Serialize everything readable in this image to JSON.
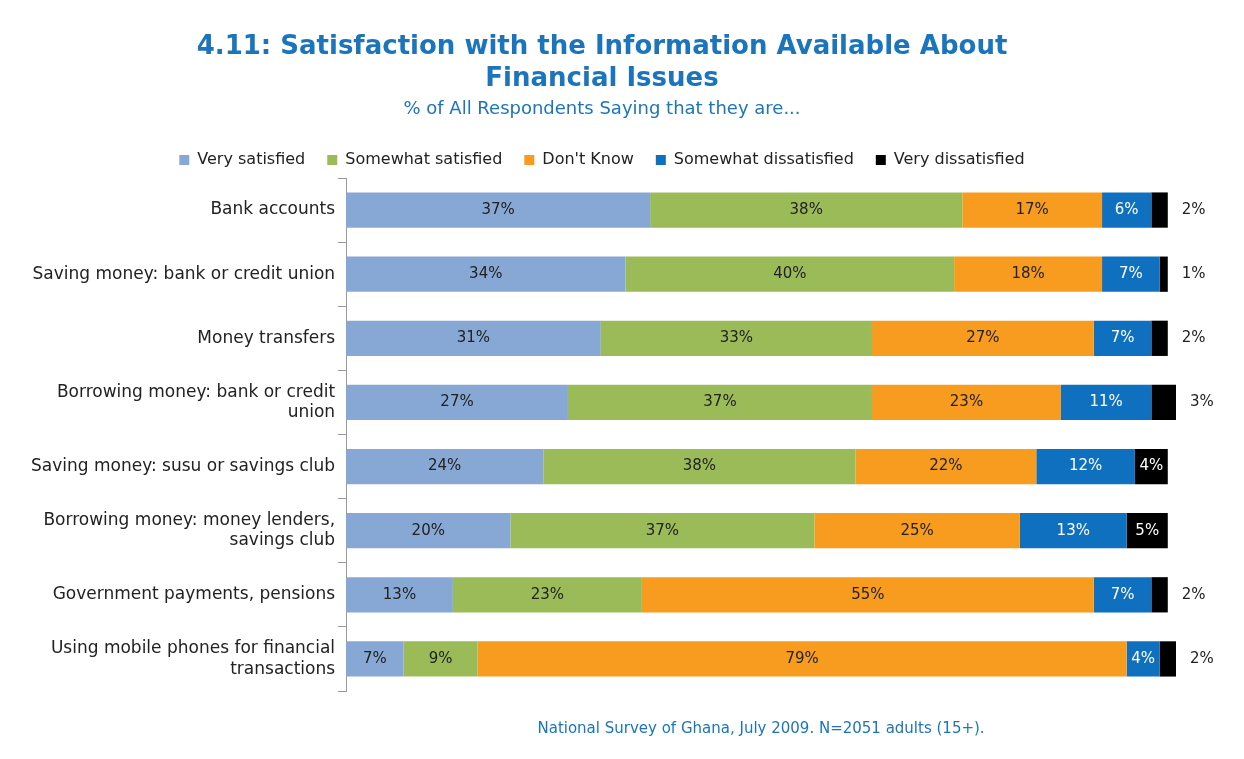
{
  "chart_data": {
    "type": "bar",
    "orientation": "horizontal",
    "stacked": true,
    "title": "4.11: Satisfaction with the Information Available About Financial Issues",
    "subtitle": "% of All Respondents Saying that they are...",
    "categories": [
      "Bank accounts",
      "Saving money: bank or credit union",
      "Money transfers",
      "Borrowing money: bank or credit union",
      "Saving money: susu or savings club",
      "Borrowing money: money lenders, savings club",
      "Government payments, pensions",
      "Using mobile phones for financial transactions"
    ],
    "series": [
      {
        "name": "Very satisfied",
        "color": "#87a7d4",
        "values": [
          37,
          34,
          31,
          27,
          24,
          20,
          13,
          7
        ],
        "value_labels": [
          "37%",
          "34%",
          "31%",
          "27%",
          "24%",
          "20%",
          "13%",
          "7%"
        ]
      },
      {
        "name": "Somewhat satisfied",
        "color": "#9bbb59",
        "values": [
          38,
          40,
          33,
          37,
          38,
          37,
          23,
          9
        ],
        "value_labels": [
          "38%",
          "40%",
          "33%",
          "37%",
          "38%",
          "37%",
          "23%",
          "9%"
        ]
      },
      {
        "name": "Don't Know",
        "color": "#f79c1e",
        "values": [
          17,
          18,
          27,
          23,
          22,
          25,
          55,
          79
        ],
        "value_labels": [
          "17%",
          "18%",
          "27%",
          "23%",
          "22%",
          "25%",
          "55%",
          "79%"
        ]
      },
      {
        "name": "Somewhat dissatisfied",
        "color": "#0f70c0",
        "values": [
          6,
          7,
          7,
          11,
          12,
          13,
          7,
          4
        ],
        "value_labels": [
          "6%",
          "7%",
          "7%",
          "11%",
          "12%",
          "13%",
          "7%",
          "4%"
        ]
      },
      {
        "name": "Very dissatisfied",
        "color": "#000000",
        "values": [
          2,
          1,
          2,
          3,
          4,
          5,
          2,
          2
        ],
        "value_labels": [
          "2%",
          "1%",
          "2%",
          "3%",
          "4%",
          "5%",
          "2%",
          "2%"
        ]
      }
    ],
    "xlim": [
      0,
      101
    ],
    "tick_labels": "y",
    "grid": false,
    "legend": "top",
    "annotations": [
      "National Survey of Ghana, July 2009. N=2051 adults (15+)."
    ]
  }
}
